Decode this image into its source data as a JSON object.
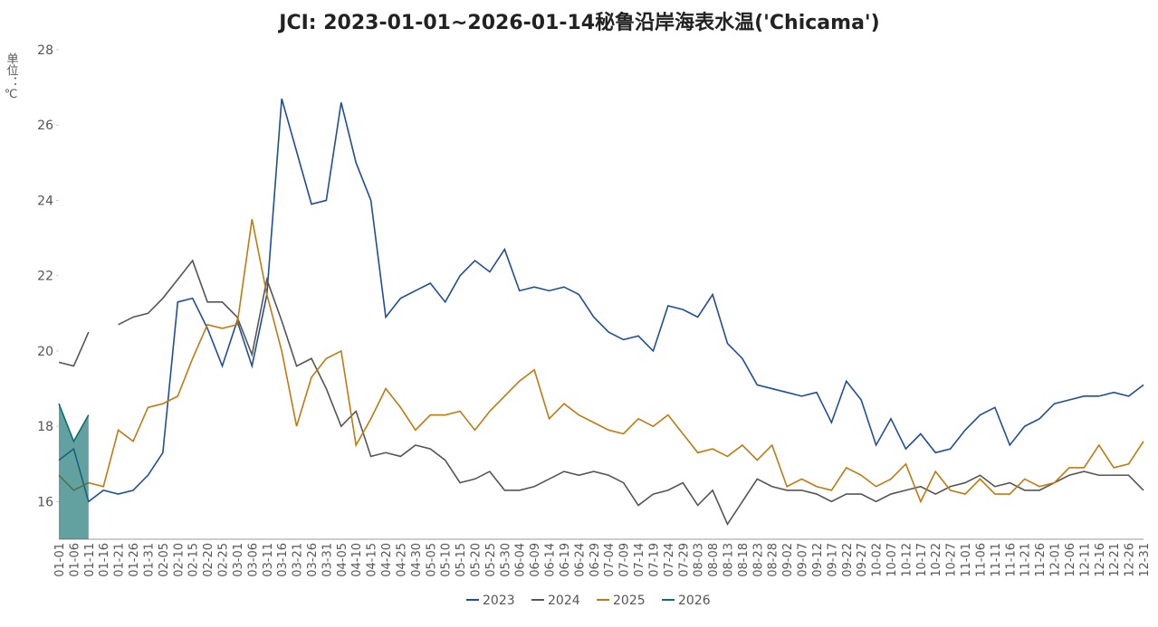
{
  "chart_data": {
    "type": "line",
    "title": "JCI: 2023-01-01~2026-01-14秘鲁沿岸海表水温('Chicama')",
    "y_label": "单位：℃",
    "categories": [
      "01-01",
      "01-06",
      "01-11",
      "01-16",
      "01-21",
      "01-26",
      "01-31",
      "02-05",
      "02-10",
      "02-15",
      "02-20",
      "02-25",
      "03-01",
      "03-06",
      "03-11",
      "03-16",
      "03-21",
      "03-26",
      "03-31",
      "04-05",
      "04-10",
      "04-15",
      "04-20",
      "04-25",
      "04-30",
      "05-05",
      "05-10",
      "05-15",
      "05-20",
      "05-25",
      "05-30",
      "06-04",
      "06-09",
      "06-14",
      "06-19",
      "06-24",
      "06-29",
      "07-04",
      "07-09",
      "07-14",
      "07-19",
      "07-24",
      "07-29",
      "08-03",
      "08-08",
      "08-13",
      "08-18",
      "08-23",
      "08-28",
      "09-02",
      "09-07",
      "09-12",
      "09-17",
      "09-22",
      "09-27",
      "10-02",
      "10-07",
      "10-12",
      "10-17",
      "10-22",
      "10-27",
      "11-01",
      "11-06",
      "11-11",
      "11-16",
      "11-21",
      "11-26",
      "12-01",
      "12-06",
      "12-11",
      "12-16",
      "12-21",
      "12-26",
      "12-31"
    ],
    "series": [
      {
        "name": "2023",
        "color": "#1f4e96",
        "values": [
          17.1,
          17.4,
          16.0,
          16.3,
          16.2,
          16.3,
          16.7,
          17.3,
          21.3,
          21.4,
          20.6,
          19.6,
          20.8,
          19.6,
          21.5,
          26.7,
          25.3,
          23.9,
          24.0,
          26.6,
          25.0,
          24.0,
          20.9,
          21.4,
          21.6,
          21.8,
          21.3,
          22.0,
          22.4,
          22.1,
          22.7,
          21.6,
          21.7,
          21.6,
          21.7,
          21.5,
          20.9,
          20.5,
          20.3,
          20.4,
          20.0,
          21.2,
          21.1,
          20.9,
          21.5,
          20.2,
          19.8,
          19.1,
          19.0,
          18.9,
          18.8,
          18.9,
          18.1,
          19.2,
          18.7,
          17.5,
          18.2,
          17.4,
          17.8,
          17.3,
          17.4,
          17.9,
          18.3,
          18.5,
          17.5,
          18.0,
          18.2,
          18.6,
          18.7,
          18.8,
          18.8,
          18.9,
          18.8,
          19.1
        ]
      },
      {
        "name": "2024",
        "color": "#555555",
        "values": [
          19.7,
          19.6,
          20.5,
          null,
          20.7,
          20.9,
          21.0,
          21.4,
          21.9,
          22.4,
          21.3,
          21.3,
          20.9,
          19.9,
          21.9,
          20.8,
          19.6,
          19.8,
          19.0,
          18.0,
          18.4,
          17.2,
          17.3,
          17.2,
          17.5,
          17.4,
          17.1,
          16.5,
          16.6,
          16.8,
          16.3,
          16.3,
          16.4,
          16.6,
          16.8,
          16.7,
          16.8,
          16.7,
          16.5,
          15.9,
          16.2,
          16.3,
          16.5,
          15.9,
          16.3,
          15.4,
          16.0,
          16.6,
          16.4,
          16.3,
          16.3,
          16.2,
          16.0,
          16.2,
          16.2,
          16.0,
          16.2,
          16.3,
          16.4,
          16.2,
          16.4,
          16.5,
          16.7,
          16.4,
          16.5,
          16.3,
          16.3,
          16.5,
          16.7,
          16.8,
          16.7,
          16.7,
          16.7,
          16.3
        ]
      },
      {
        "name": "2025",
        "color": "#c07a10",
        "values": [
          16.7,
          16.3,
          16.5,
          16.4,
          17.9,
          17.6,
          18.5,
          18.6,
          18.8,
          19.8,
          20.7,
          20.6,
          20.7,
          23.5,
          21.5,
          20.0,
          18.0,
          19.3,
          19.8,
          20.0,
          17.5,
          18.2,
          19.0,
          18.5,
          17.9,
          18.3,
          18.3,
          18.4,
          17.9,
          18.4,
          18.8,
          19.2,
          19.5,
          18.2,
          18.6,
          18.3,
          18.1,
          17.9,
          17.8,
          18.2,
          18.0,
          18.3,
          17.8,
          17.3,
          17.4,
          17.2,
          17.5,
          17.1,
          17.5,
          16.4,
          16.6,
          16.4,
          16.3,
          16.9,
          16.7,
          16.4,
          16.6,
          17.0,
          16.0,
          16.8,
          16.3,
          16.2,
          16.6,
          16.2,
          16.2,
          16.6,
          16.4,
          16.5,
          16.9,
          16.9,
          17.5,
          16.9,
          17.0,
          17.6
        ]
      },
      {
        "name": "2026",
        "color": "#0f6e6e",
        "area": true,
        "values": [
          18.6,
          17.6,
          18.3,
          null,
          null,
          null,
          null,
          null,
          null,
          null,
          null,
          null,
          null,
          null,
          null,
          null,
          null,
          null,
          null,
          null,
          null,
          null,
          null,
          null,
          null,
          null,
          null,
          null,
          null,
          null,
          null,
          null,
          null,
          null,
          null,
          null,
          null,
          null,
          null,
          null,
          null,
          null,
          null,
          null,
          null,
          null,
          null,
          null,
          null,
          null,
          null,
          null,
          null,
          null,
          null,
          null,
          null,
          null,
          null,
          null,
          null,
          null,
          null,
          null,
          null,
          null,
          null,
          null,
          null,
          null,
          null,
          null,
          null,
          null
        ]
      }
    ],
    "ylim": [
      15,
      28
    ],
    "yticks": [
      16,
      18,
      20,
      22,
      24,
      26,
      28
    ],
    "grid": false
  }
}
